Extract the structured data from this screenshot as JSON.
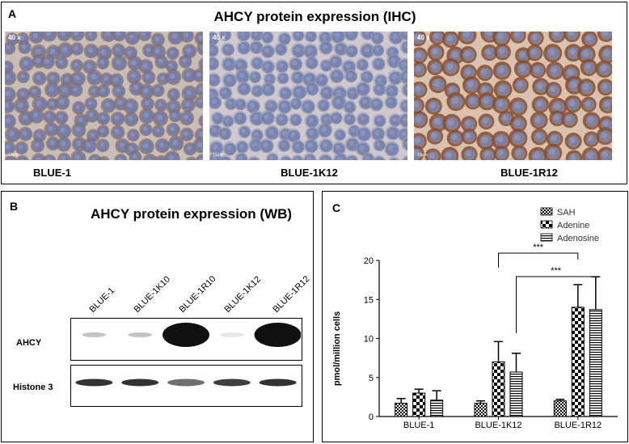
{
  "panel_a": {
    "label": "A",
    "title": "AHCY protein expression (IHC)",
    "images": [
      {
        "name": "BLUE-1",
        "magnification": "40 x",
        "scale": "10μm",
        "stain_level": 0.45
      },
      {
        "name": "BLUE-1K12",
        "magnification": "40 x",
        "scale": "10μm",
        "stain_level": 0.2
      },
      {
        "name": "BLUE-1R12",
        "magnification": "40 x",
        "scale": "10μm",
        "stain_level": 0.9
      }
    ]
  },
  "panel_b": {
    "label": "B",
    "title": "AHCY protein expression (WB)",
    "lanes": [
      "BLUE-1",
      "BLUE-1K10",
      "BLUE-1R10",
      "BLUE-1K12",
      "BLUE-1R12"
    ],
    "rows": [
      {
        "label": "AHCY",
        "intensities": [
          0.25,
          0.25,
          1.0,
          0.1,
          1.0
        ]
      },
      {
        "label": "Histone 3",
        "intensities": [
          0.85,
          0.85,
          0.6,
          0.8,
          0.85
        ]
      }
    ]
  },
  "panel_c": {
    "label": "C"
  },
  "chart_data": {
    "type": "bar",
    "title": "",
    "xlabel": "",
    "ylabel": "pmol/million cells",
    "ylim": [
      0,
      20
    ],
    "yticks": [
      0,
      5,
      10,
      15,
      20
    ],
    "categories": [
      "BLUE-1",
      "BLUE-1K12",
      "BLUE-1R12"
    ],
    "series": [
      {
        "name": "SAH",
        "values": [
          1.7,
          1.7,
          2.0
        ],
        "errors": [
          0.6,
          0.3,
          0.2
        ],
        "pattern": "checker-small"
      },
      {
        "name": "Adenine",
        "values": [
          3.0,
          7.0,
          14.0
        ],
        "errors": [
          0.5,
          2.6,
          2.9
        ],
        "pattern": "checker-large"
      },
      {
        "name": "Adenosine",
        "values": [
          2.1,
          5.7,
          13.7
        ],
        "errors": [
          1.2,
          2.4,
          4.2
        ],
        "pattern": "horizontal-lines"
      }
    ],
    "legend_position": "top-right",
    "significance": [
      {
        "label": "***",
        "from": "BLUE-1K12",
        "to": "BLUE-1R12",
        "series": "Adenine"
      },
      {
        "label": "***",
        "from": "BLUE-1K12",
        "to": "BLUE-1R12",
        "series": "Adenosine"
      }
    ]
  }
}
